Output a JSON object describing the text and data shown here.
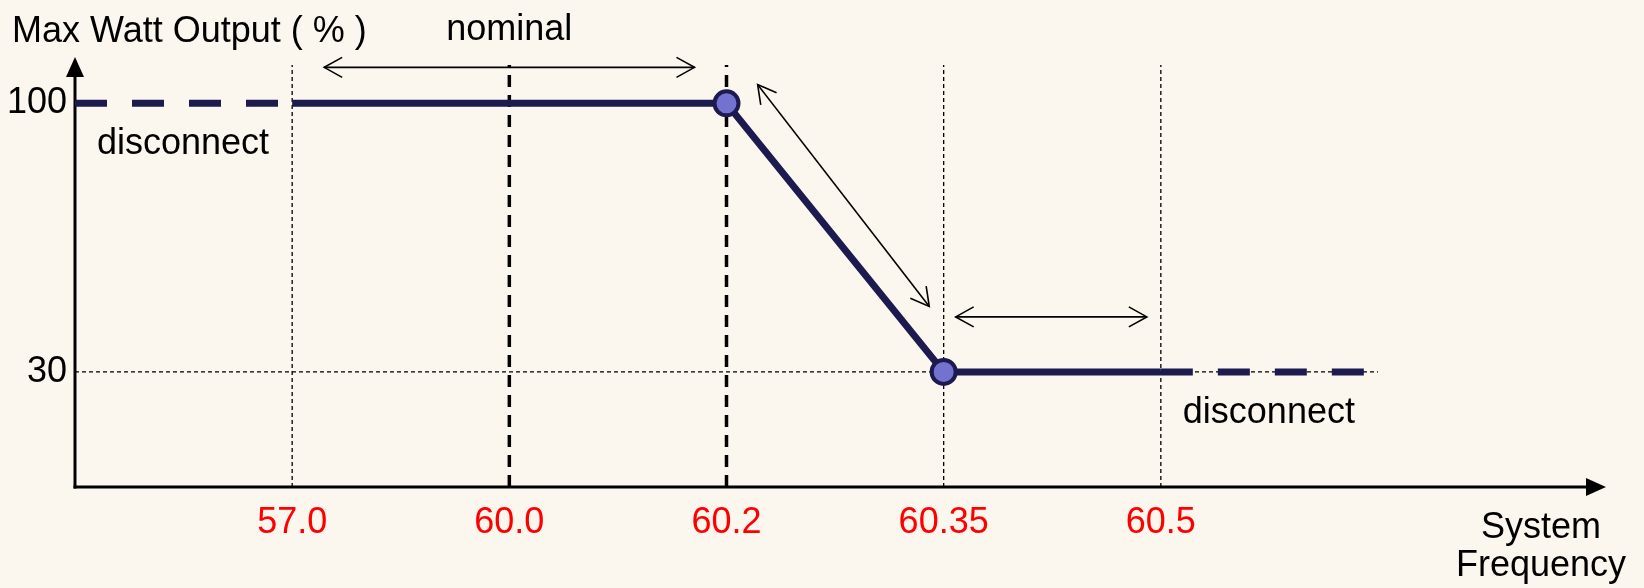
{
  "chart_data": {
    "type": "line",
    "ylabel": "Max Watt Output ( % )",
    "xlabel": "System Frequency",
    "categories": [
      null,
      "57.0",
      "60.0",
      "60.2",
      "60.35",
      "60.5",
      null
    ],
    "series": [
      {
        "name": "disconnect",
        "color": "#1c1a4f",
        "line_style": "dashed",
        "values": [
          100,
          100,
          null,
          null,
          null,
          null,
          null
        ]
      },
      {
        "color": "#1c1a4f",
        "line_style": "solid",
        "values": [
          null,
          100,
          100,
          100,
          30,
          30,
          null
        ]
      },
      {
        "name": "disconnect",
        "color": "#1c1a4f",
        "line_style": "dashed",
        "values": [
          null,
          null,
          null,
          null,
          null,
          30,
          30
        ]
      },
      {
        "type": "scatter",
        "color": "#7373cf",
        "marker": "circle",
        "x": [
          "60.2",
          "60.35"
        ],
        "values": [
          100,
          30
        ]
      }
    ],
    "ylim": [
      0,
      110
    ],
    "yticks": [
      30,
      100
    ],
    "ref_lines": [
      {
        "axis": "x",
        "value": "57.0",
        "color": "#000000",
        "line_style": "dotted"
      },
      {
        "axis": "x",
        "value": "60.0",
        "color": "#000000",
        "line_style": "dashed"
      },
      {
        "axis": "x",
        "value": "60.2",
        "color": "#000000",
        "line_style": "dashed"
      },
      {
        "axis": "x",
        "value": "60.35",
        "color": "#000000",
        "line_style": "dotted"
      },
      {
        "axis": "x",
        "value": "60.5",
        "color": "#000000",
        "line_style": "dotted"
      },
      {
        "axis": "y",
        "value": 30,
        "color": "#000000",
        "line_style": "dotted"
      }
    ],
    "annotations": [
      "nominal"
    ]
  }
}
